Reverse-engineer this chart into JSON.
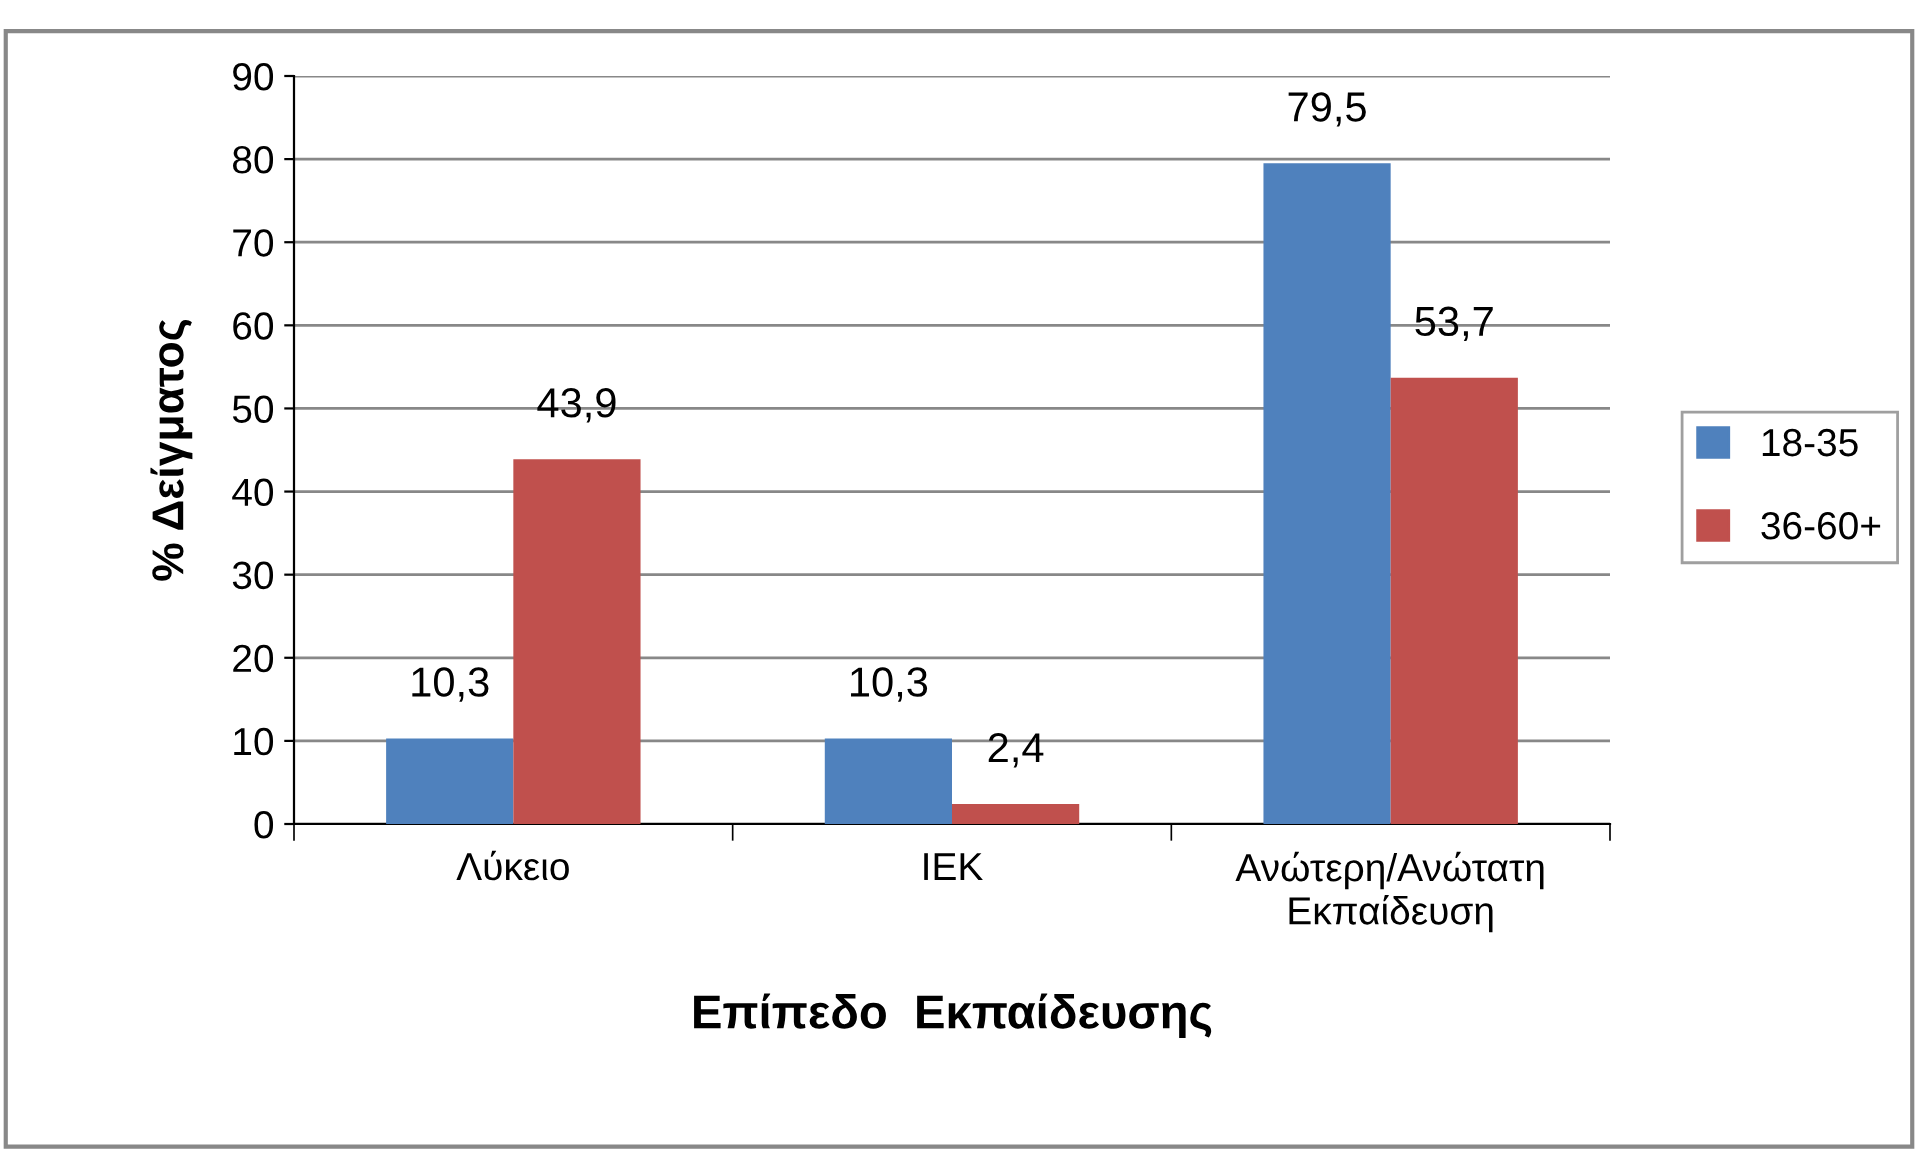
{
  "chart_data": {
    "type": "bar",
    "xlabel": "Επίπεδο  Εκπαίδευσης",
    "ylabel": "% Δείγματος",
    "categories": [
      "Λύκειο",
      "ΙΕΚ",
      "Ανώτερη/Ανώτατη\nΕκπαίδευση"
    ],
    "series": [
      {
        "name": "18-35",
        "color": "#4f81bd",
        "values": [
          10.3,
          10.3,
          79.5
        ],
        "value_labels": [
          "10,3",
          "10,3",
          "79,5"
        ]
      },
      {
        "name": "36-60+",
        "color": "#c0504d",
        "values": [
          43.9,
          2.4,
          53.7
        ],
        "value_labels": [
          "43,9",
          "2,4",
          "53,7"
        ]
      }
    ],
    "ylim": [
      0,
      90
    ],
    "yticks": [
      0,
      10,
      20,
      30,
      40,
      50,
      60,
      70,
      80,
      90
    ],
    "grid": "y",
    "legend": "right"
  }
}
